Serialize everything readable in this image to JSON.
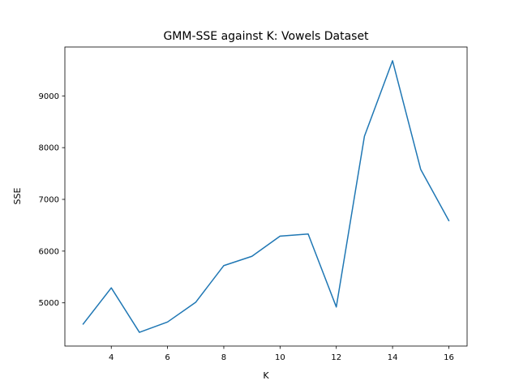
{
  "chart_data": {
    "type": "line",
    "title": "GMM-SSE against K: Vowels Dataset",
    "xlabel": "K",
    "ylabel": "SSE",
    "xlim": [
      2.35,
      16.65
    ],
    "ylim": [
      4165,
      9945
    ],
    "xticks": [
      4,
      6,
      8,
      10,
      12,
      14,
      16
    ],
    "yticks": [
      5000,
      6000,
      7000,
      8000,
      9000
    ],
    "grid": false,
    "series": [
      {
        "color": "#1f77b4",
        "x": [
          3,
          4,
          5,
          6,
          7,
          8,
          9,
          10,
          11,
          12,
          13,
          14,
          15,
          16
        ],
        "y": [
          4590,
          5290,
          4430,
          4630,
          5010,
          5720,
          5900,
          6290,
          6330,
          4920,
          8220,
          9680,
          7580,
          6590
        ]
      }
    ]
  }
}
